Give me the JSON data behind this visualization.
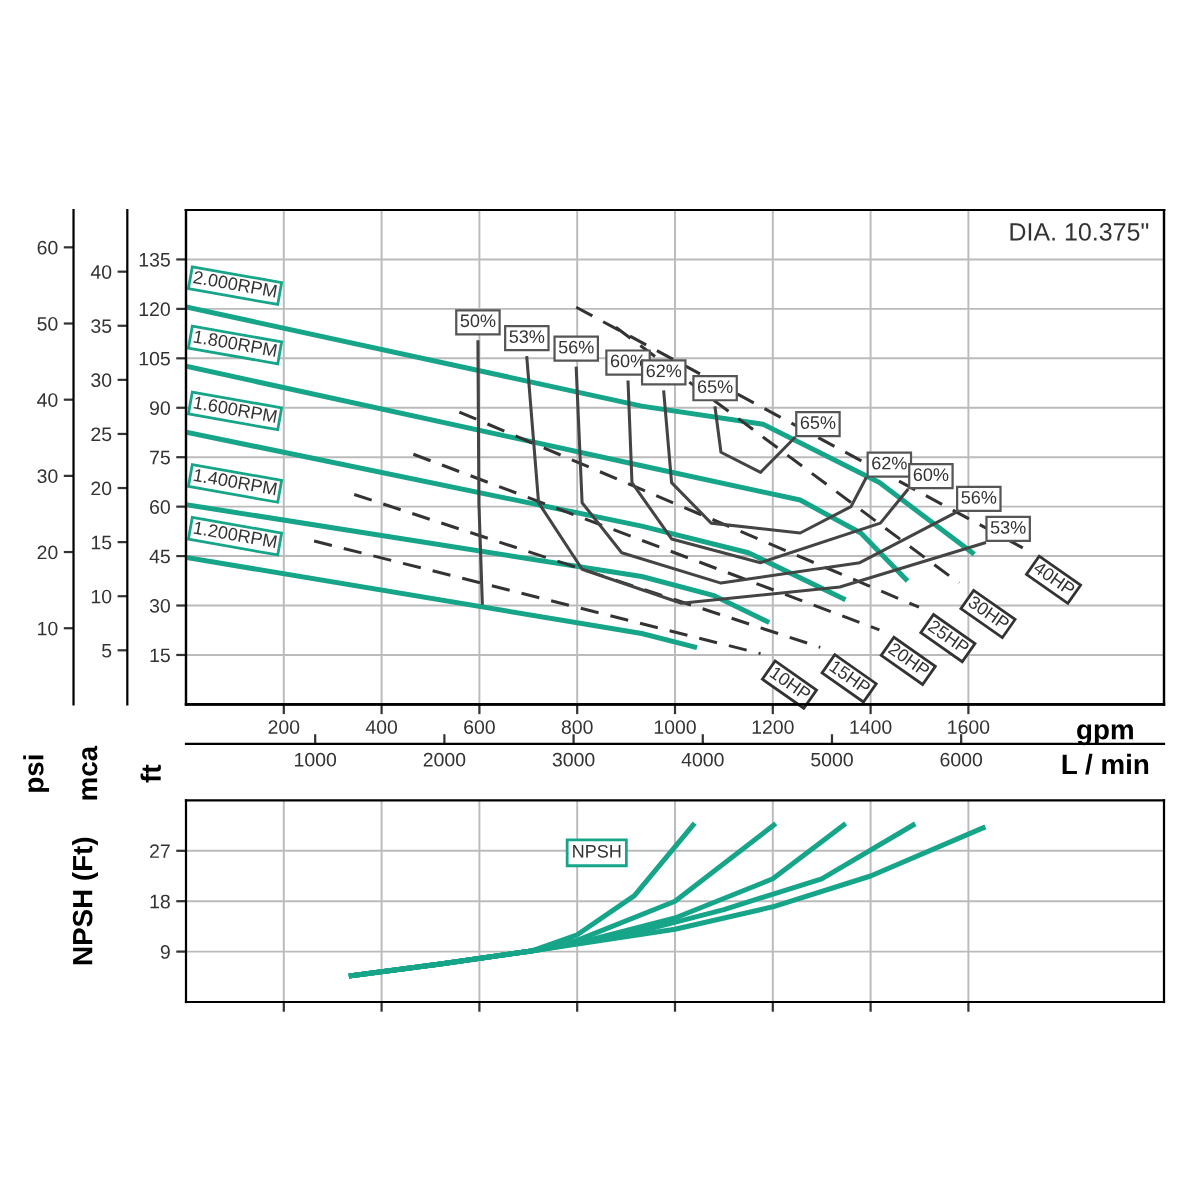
{
  "chart_data": [
    {
      "type": "line",
      "subtitle": "DIA. 10.375\"",
      "xlabel": "gpm",
      "x2label": "L / min",
      "ylabel": "ft",
      "y2label": "psi",
      "y3label": "mca",
      "xlim": [
        0,
        2000
      ],
      "xticks": [
        200,
        400,
        600,
        800,
        1000,
        1200,
        1400,
        1600
      ],
      "x2lim": [
        0,
        7570
      ],
      "x2ticks": [
        1000,
        2000,
        3000,
        4000,
        5000,
        6000
      ],
      "ylim": [
        0,
        150
      ],
      "yticks": [
        15,
        30,
        45,
        60,
        75,
        90,
        105,
        120,
        135
      ],
      "y2lim": [
        0,
        64.9
      ],
      "y2ticks": [
        10,
        20,
        30,
        40,
        50,
        60
      ],
      "y3lim": [
        0,
        45.7
      ],
      "y3ticks": [
        5,
        10,
        15,
        20,
        25,
        30,
        35,
        40
      ],
      "grid": true,
      "series": [
        {
          "name": "2.000RPM",
          "color": "#17a589",
          "line_style": "solid",
          "x": [
            0,
            932,
            1180,
            1418,
            1608
          ],
          "values": [
            120.6,
            90.5,
            85,
            67.3,
            46
          ]
        },
        {
          "name": "1.800RPM",
          "color": "#17a589",
          "line_style": "solid",
          "x": [
            0,
            932,
            1256,
            1380,
            1472
          ],
          "values": [
            102.6,
            72.4,
            62,
            52,
            38
          ]
        },
        {
          "name": "1.600RPM",
          "color": "#17a589",
          "line_style": "solid",
          "x": [
            0,
            932,
            1150,
            1344
          ],
          "values": [
            82.6,
            54.1,
            46,
            32.1
          ]
        },
        {
          "name": "1.400RPM",
          "color": "#17a589",
          "line_style": "solid",
          "x": [
            0,
            932,
            1080,
            1188
          ],
          "values": [
            60.6,
            38.8,
            33,
            25.2
          ]
        },
        {
          "name": "1.200RPM",
          "color": "#17a589",
          "line_style": "solid",
          "x": [
            0,
            932,
            1040
          ],
          "values": [
            44.6,
            21.5,
            17.4
          ]
        },
        {
          "name": "40HP",
          "color": "#333333",
          "line_style": "dashed",
          "x": [
            798,
            1715
          ],
          "values": [
            120.5,
            47.2
          ]
        },
        {
          "name": "30HP",
          "color": "#333333",
          "line_style": "dashed",
          "x": [
            879,
            1581
          ],
          "values": [
            114.4,
            36.8
          ]
        },
        {
          "name": "25HP",
          "color": "#333333",
          "line_style": "dashed",
          "x": [
            559,
            1499
          ],
          "values": [
            88.7,
            29.5
          ]
        },
        {
          "name": "20HP",
          "color": "#333333",
          "line_style": "dashed",
          "x": [
            465,
            1418
          ],
          "values": [
            75.9,
            22.6
          ]
        },
        {
          "name": "15HP",
          "color": "#333333",
          "line_style": "dashed",
          "x": [
            344,
            1297
          ],
          "values": [
            63.7,
            17.3
          ]
        },
        {
          "name": "10HP",
          "color": "#333333",
          "line_style": "dashed",
          "x": [
            262,
            1175
          ],
          "values": [
            49.6,
            15.4
          ]
        },
        {
          "color": "#444444",
          "line_style": "solid",
          "x": [
            597,
            599,
            606
          ],
          "values": [
            110,
            61,
            30.7
          ]
        },
        {
          "color": "#444444",
          "line_style": "solid",
          "x": [
            697,
            721,
            810,
            1013,
            1337,
            1633
          ],
          "values": [
            105.2,
            61.2,
            41,
            30.7,
            35.6,
            49
          ]
        },
        {
          "color": "#444444",
          "line_style": "solid",
          "x": [
            798,
            810,
            891,
            1094,
            1378,
            1573
          ],
          "values": [
            102,
            61.2,
            46,
            36.8,
            43,
            58.1
          ]
        },
        {
          "color": "#444444",
          "line_style": "solid",
          "x": [
            904,
            912,
            993,
            1175,
            1420,
            1475
          ],
          "values": [
            97.8,
            67.3,
            50.2,
            43,
            55,
            65
          ]
        },
        {
          "color": "#444444",
          "line_style": "solid",
          "x": [
            977,
            993,
            1074,
            1256,
            1360,
            1390
          ],
          "values": [
            94.8,
            67.3,
            55,
            52,
            60,
            68.5
          ]
        },
        {
          "color": "#444444",
          "line_style": "solid",
          "x": [
            1082,
            1094,
            1175,
            1244
          ],
          "values": [
            90,
            76.5,
            70.4,
            80.8
          ]
        }
      ],
      "annotations": [
        {
          "text": "50%",
          "x": 597,
          "y": 110
        },
        {
          "text": "53%",
          "x": 697,
          "y": 105.2
        },
        {
          "text": "56%",
          "x": 798,
          "y": 102
        },
        {
          "text": "60%",
          "x": 904,
          "y": 97.8
        },
        {
          "text": "62%",
          "x": 977,
          "y": 94.8
        },
        {
          "text": "65%",
          "x": 1082,
          "y": 90
        },
        {
          "text": "65%",
          "x": 1244,
          "y": 80.8
        },
        {
          "text": "62%",
          "x": 1390,
          "y": 68.5
        },
        {
          "text": "60%",
          "x": 1475,
          "y": 65
        },
        {
          "text": "56%",
          "x": 1573,
          "y": 58.1
        },
        {
          "text": "53%",
          "x": 1633,
          "y": 49
        }
      ]
    },
    {
      "type": "line",
      "ylabel": "NPSH (Ft)",
      "xlim": [
        0,
        2000
      ],
      "xticks": [
        {
          "value": 200,
          "label": null
        },
        {
          "value": 400,
          "label": null
        },
        {
          "value": 600,
          "label": null
        },
        {
          "value": 800,
          "label": null
        },
        {
          "value": 1000,
          "label": null
        },
        {
          "value": 1200,
          "label": null
        },
        {
          "value": 1400,
          "label": null
        },
        {
          "value": 1600,
          "label": null
        }
      ],
      "ylim": [
        0,
        36
      ],
      "yticks": [
        9,
        18,
        27
      ],
      "tick_labels": "y",
      "grid": true,
      "series": [
        {
          "color": "#17a589",
          "line_style": "solid",
          "x": [
            338,
            520,
            706,
            800,
            917,
            1037
          ],
          "values": [
            4.7,
            6.8,
            9.1,
            12,
            19,
            31.6
          ]
        },
        {
          "color": "#17a589",
          "line_style": "solid",
          "x": [
            338,
            520,
            706,
            800,
            1000,
            1202
          ],
          "values": [
            4.7,
            6.8,
            9.1,
            11,
            18,
            31.6
          ]
        },
        {
          "color": "#17a589",
          "line_style": "solid",
          "x": [
            338,
            520,
            706,
            800,
            1000,
            1200,
            1345
          ],
          "values": [
            4.7,
            6.8,
            9.1,
            10.5,
            15,
            22,
            31.6
          ]
        },
        {
          "color": "#17a589",
          "line_style": "solid",
          "x": [
            338,
            520,
            706,
            900,
            1100,
            1300,
            1487
          ],
          "values": [
            4.7,
            6.8,
            9.1,
            12,
            16.5,
            22,
            31.6
          ]
        },
        {
          "color": "#17a589",
          "line_style": "solid",
          "x": [
            338,
            520,
            706,
            1000,
            1200,
            1400,
            1630
          ],
          "values": [
            4.7,
            6.8,
            9.1,
            13,
            17,
            22.5,
            31.1
          ]
        }
      ],
      "annotations": [
        "NPSH"
      ]
    }
  ]
}
